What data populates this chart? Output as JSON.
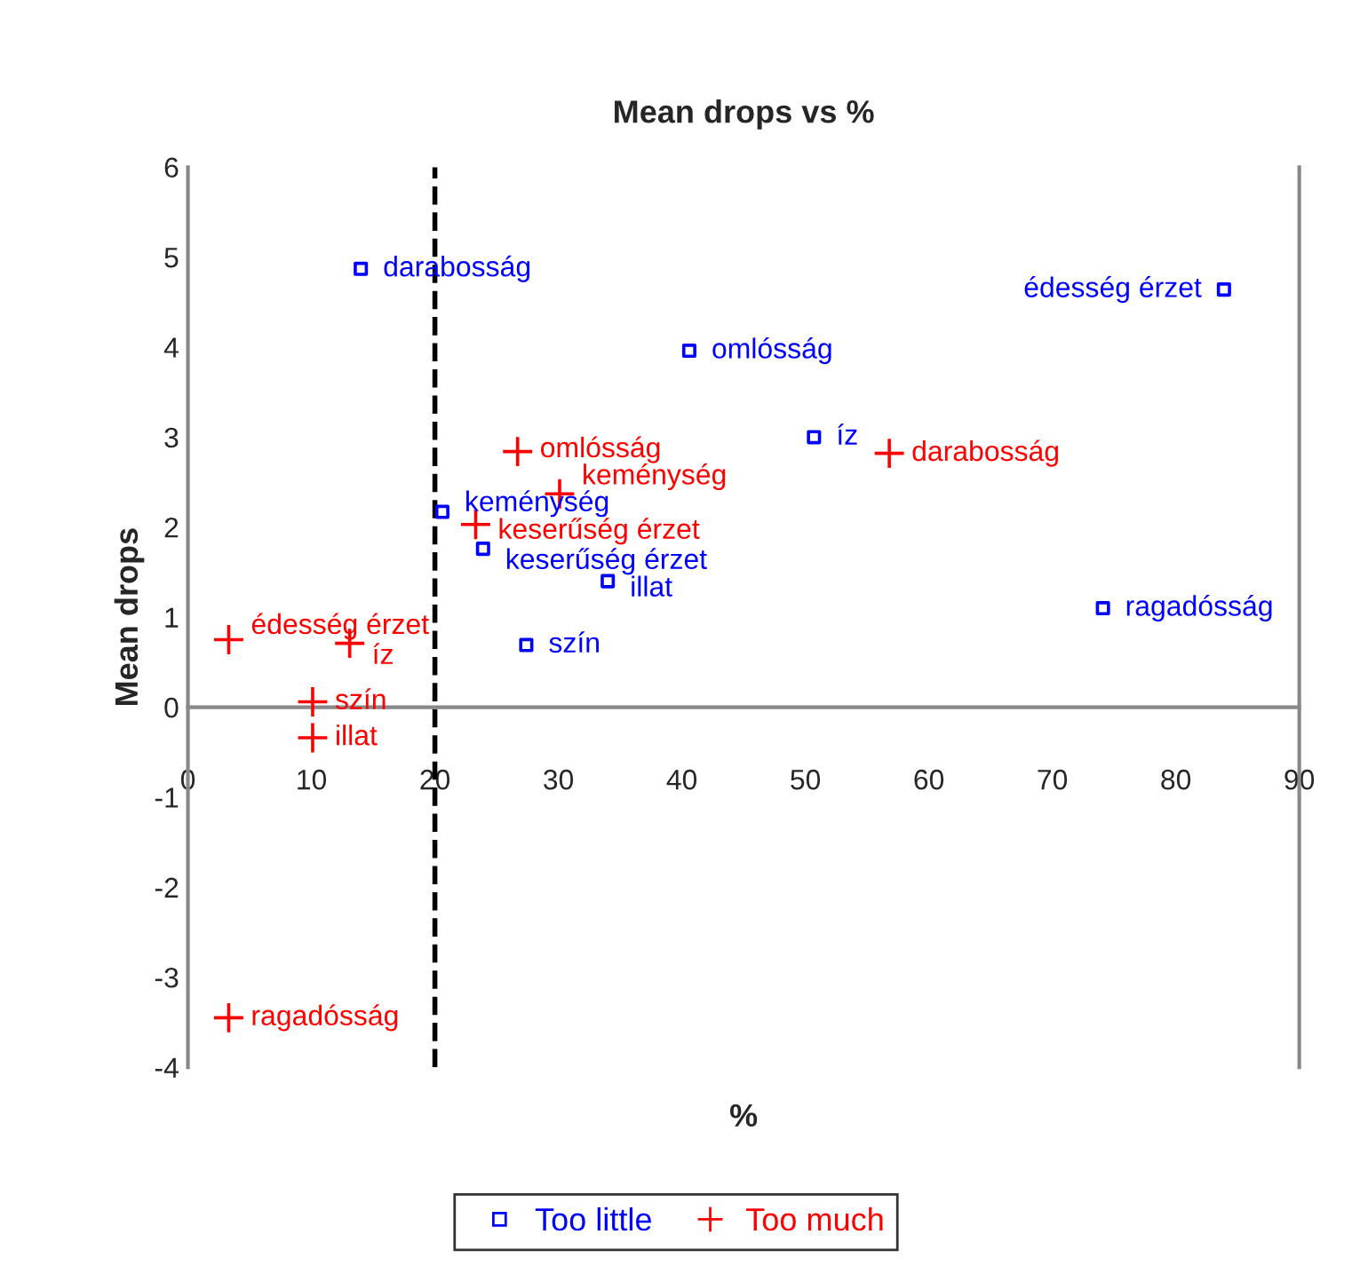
{
  "chart_data": {
    "type": "scatter",
    "title": "Mean drops vs %",
    "xlabel": "%",
    "ylabel": "Mean drops",
    "xlim": [
      0,
      90
    ],
    "xticks": [
      0,
      10,
      20,
      30,
      40,
      50,
      60,
      70,
      80,
      90
    ],
    "ylim": [
      -4,
      6
    ],
    "yticks": [
      -4,
      -3,
      -2,
      -1,
      0,
      1,
      2,
      3,
      4,
      5,
      6
    ],
    "grid": false,
    "legend": "bottom",
    "series": [
      {
        "name": "Too little",
        "color": "#0000ff",
        "marker": "square",
        "x": [
          14.0,
          40.6,
          50.7,
          83.9,
          20.6,
          23.9,
          34.0,
          27.4,
          74.1
        ],
        "values": [
          4.87,
          3.96,
          3.0,
          4.64,
          2.17,
          1.76,
          1.4,
          0.69,
          1.1
        ]
      },
      {
        "name": "Too much",
        "color": "#ff0000",
        "marker": "cross",
        "x": [
          26.7,
          30.1,
          23.3,
          56.8,
          3.3,
          13.1,
          10.1,
          10.1,
          3.3
        ],
        "values": [
          2.84,
          2.37,
          2.03,
          2.82,
          0.75,
          0.71,
          0.06,
          -0.34,
          -3.45
        ]
      }
    ],
    "ref_lines": [
      {
        "axis": "x",
        "value": 20,
        "color": "#000000",
        "line_style": "dashed"
      }
    ],
    "annotations": [
      {
        "text": "darabosság",
        "x": 14.0,
        "y": 4.87
      },
      {
        "text": "omlósság",
        "x": 40.6,
        "y": 3.96
      },
      {
        "text": "íz",
        "x": 50.7,
        "y": 3.0
      },
      {
        "text": "édesség érzet",
        "x": 83.9,
        "y": 4.64
      },
      {
        "text": "keménység",
        "x": 20.6,
        "y": 2.17
      },
      {
        "text": "keserűség érzet",
        "x": 23.9,
        "y": 1.76
      },
      {
        "text": "illat",
        "x": 34.0,
        "y": 1.4
      },
      {
        "text": "szín",
        "x": 27.4,
        "y": 0.69
      },
      {
        "text": "ragadósság",
        "x": 74.1,
        "y": 1.1
      },
      {
        "text": "omlósság",
        "x": 26.7,
        "y": 2.84
      },
      {
        "text": "keménység",
        "x": 30.1,
        "y": 2.37
      },
      {
        "text": "keserűség érzet",
        "x": 23.3,
        "y": 2.03
      },
      {
        "text": "darabosság",
        "x": 56.8,
        "y": 2.82
      },
      {
        "text": "édesség érzet",
        "x": 3.3,
        "y": 0.75
      },
      {
        "text": "íz",
        "x": 13.1,
        "y": 0.71
      },
      {
        "text": "szín",
        "x": 10.1,
        "y": 0.06
      },
      {
        "text": "illat",
        "x": 10.1,
        "y": -0.34
      },
      {
        "text": "ragadósság",
        "x": 3.3,
        "y": -3.45
      }
    ]
  }
}
